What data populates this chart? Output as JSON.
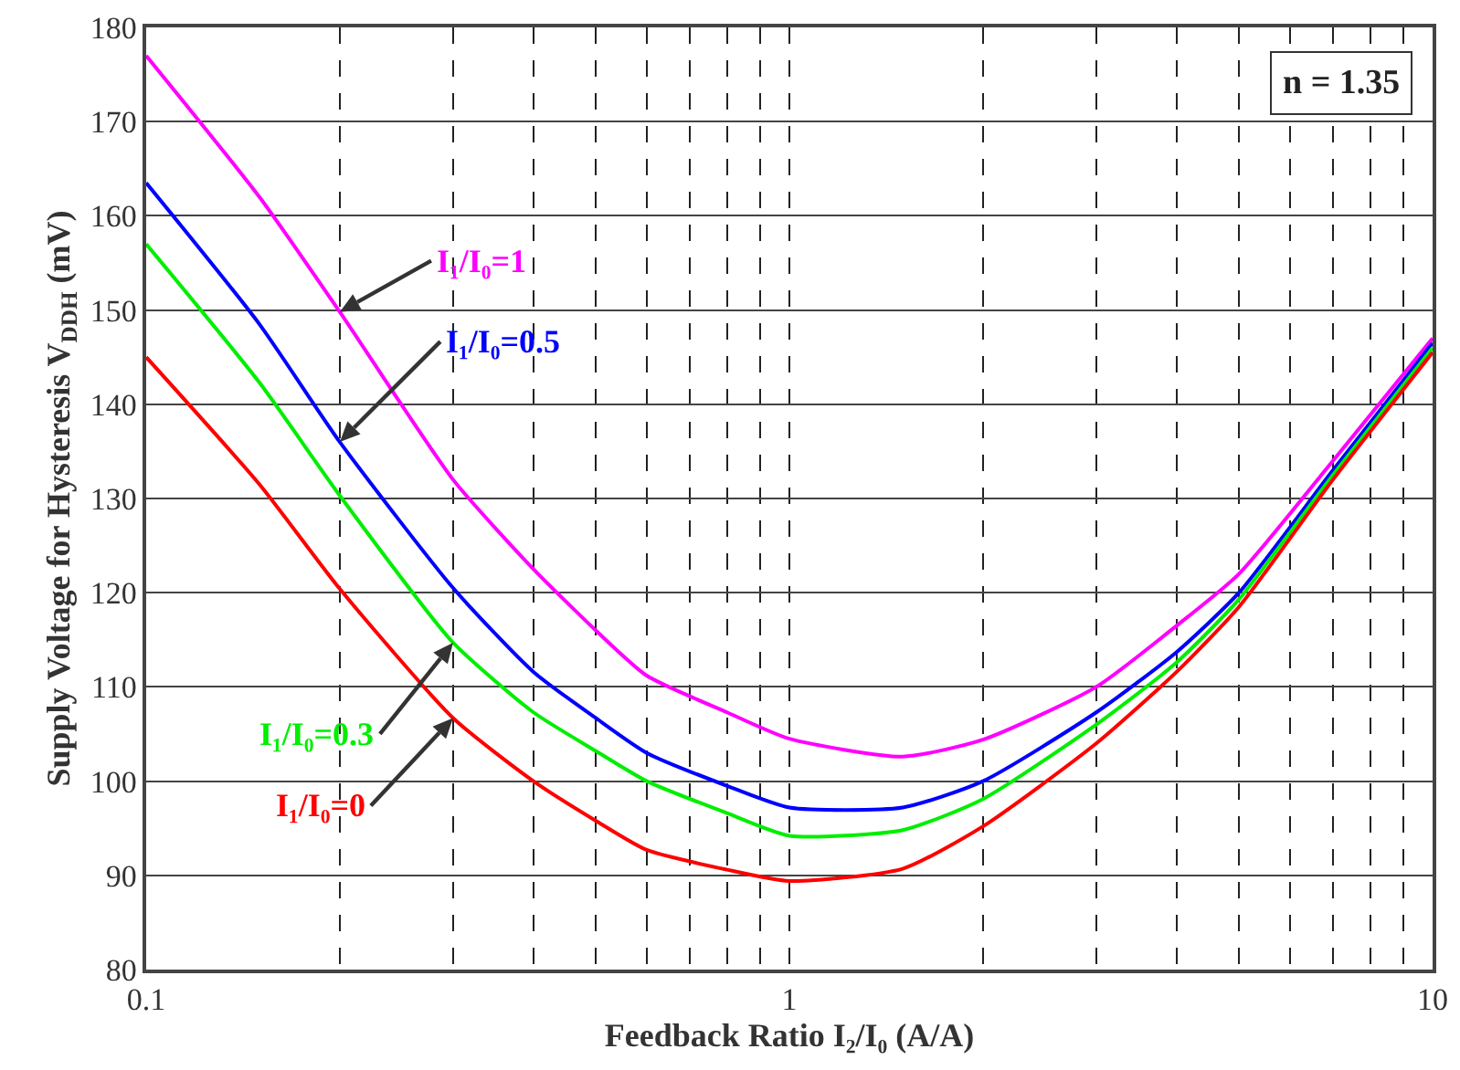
{
  "chart_data": {
    "type": "line",
    "xlabel": "Feedback Ratio I₂/I₀ (A/A)",
    "ylabel": "Supply Voltage for Hysteresis V$_{DDH}$ (mV)",
    "annotations": [
      "n = 1.35"
    ],
    "x": [
      0.1,
      0.15,
      0.2,
      0.3,
      0.4,
      0.5,
      0.6,
      0.8,
      1,
      1.5,
      2,
      3,
      4,
      5,
      7,
      10
    ],
    "series": [
      {
        "name": "I₁/I₀=1",
        "color": "#ff00ff",
        "values": [
          177,
          162,
          149.8,
          132,
          122.5,
          116,
          111.2,
          107.3,
          104.5,
          102.6,
          104.4,
          110,
          116.5,
          122,
          134,
          147
        ]
      },
      {
        "name": "I₁/I₀=0.5",
        "color": "#0000ff",
        "values": [
          163.5,
          148.5,
          136,
          120.5,
          111.6,
          106.7,
          103,
          99.5,
          97.2,
          97.2,
          100,
          107.3,
          113.7,
          120,
          133,
          146.5
        ]
      },
      {
        "name": "I₁/I₀=0.3",
        "color": "#00ee00",
        "values": [
          157,
          142.3,
          130.3,
          114.7,
          107.3,
          103.2,
          100,
          96.6,
          94.2,
          94.8,
          98.1,
          106,
          112.6,
          119.3,
          132.5,
          146
        ]
      },
      {
        "name": "I₁/I₀=0",
        "color": "#ff0000",
        "values": [
          145,
          131.5,
          120.4,
          106.7,
          100,
          95.8,
          92.7,
          90.6,
          89.4,
          90.7,
          95.2,
          104,
          111.6,
          118.5,
          132,
          145.5
        ]
      }
    ],
    "log": "x",
    "xlim": [
      0.1,
      10
    ],
    "xticks": [
      0.1,
      {
        "value": 0.2,
        "label": null
      },
      {
        "value": 0.3,
        "label": null
      },
      {
        "value": 0.4,
        "label": null
      },
      {
        "value": 0.5,
        "label": null
      },
      {
        "value": 0.6,
        "label": null
      },
      {
        "value": 0.7,
        "label": null
      },
      {
        "value": 0.8,
        "label": null
      },
      {
        "value": 0.9,
        "label": null
      },
      1,
      {
        "value": 2,
        "label": null
      },
      {
        "value": 3,
        "label": null
      },
      {
        "value": 4,
        "label": null
      },
      {
        "value": 5,
        "label": null
      },
      {
        "value": 6,
        "label": null
      },
      {
        "value": 7,
        "label": null
      },
      {
        "value": 8,
        "label": null
      },
      {
        "value": 9,
        "label": null
      },
      10
    ],
    "ylim": [
      80,
      180
    ],
    "yticks": [
      80,
      90,
      100,
      110,
      120,
      130,
      140,
      150,
      160,
      170,
      180
    ],
    "grid": true,
    "legend": false,
    "marker": "none",
    "line_style": "solid"
  }
}
